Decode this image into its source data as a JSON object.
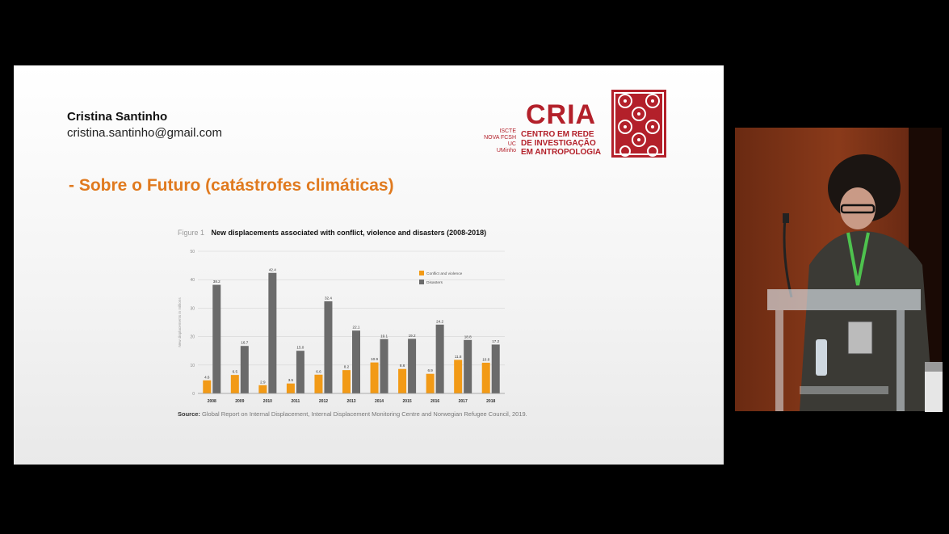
{
  "slide": {
    "author_name": "Cristina Santinho",
    "author_email": "cristina.santinho@gmail.com",
    "title": "- Sobre o Futuro (catástrofes climáticas)",
    "logo": {
      "wordmark": "CRIA",
      "institutions": [
        "ISCTE",
        "NOVA FCSH",
        "UC",
        "UMinho"
      ],
      "center_name_lines": [
        "CENTRO EM REDE",
        "DE INVESTIGAÇÃO",
        "EM ANTROPOLOGIA"
      ],
      "color": "#b3202a"
    },
    "figure": {
      "label": "Figure 1",
      "title": "New displacements associated with conflict, violence and disasters (2008-2018)",
      "source_label": "Source:",
      "source_text": "Global Report on Internal Displacement, Internal Displacement Monitoring Centre and Norwegian Refugee Council, 2019."
    }
  },
  "chart_data": {
    "type": "bar",
    "title": "New displacements associated with conflict, violence and disasters (2008-2018)",
    "ylabel": "New displacements in millions",
    "ylim": [
      0,
      50
    ],
    "yticks": [
      0,
      10,
      20,
      30,
      40,
      50
    ],
    "grid": true,
    "legend_position": "top-right",
    "categories": [
      "2008",
      "2009",
      "2010",
      "2011",
      "2012",
      "2013",
      "2014",
      "2015",
      "2016",
      "2017",
      "2018"
    ],
    "series": [
      {
        "name": "Conflict and violence",
        "color": "#f29a16",
        "values": [
          4.6,
          6.5,
          2.9,
          3.5,
          6.6,
          8.2,
          10.9,
          8.6,
          6.9,
          11.8,
          10.8
        ],
        "labels": [
          "4.6",
          "6.5",
          "2.9",
          "3.5",
          "6.6",
          "8.2",
          "10.9",
          "8.6",
          "6.9",
          "11.8",
          "10.8"
        ]
      },
      {
        "name": "Disasters",
        "color": "#6b6b6b",
        "values": [
          38.2,
          16.7,
          42.4,
          15.0,
          32.4,
          22.1,
          19.1,
          19.2,
          24.2,
          18.8,
          17.2
        ],
        "labels": [
          "38.2",
          "16.7",
          "42.4",
          "15.0",
          "32.4",
          "22.1",
          "19.1",
          "19.2",
          "24.2",
          "18.8",
          "17.2"
        ]
      }
    ]
  },
  "video": {
    "icons": [
      "speaker-person",
      "microphone-icon",
      "podium",
      "water-bottle-icon"
    ]
  }
}
